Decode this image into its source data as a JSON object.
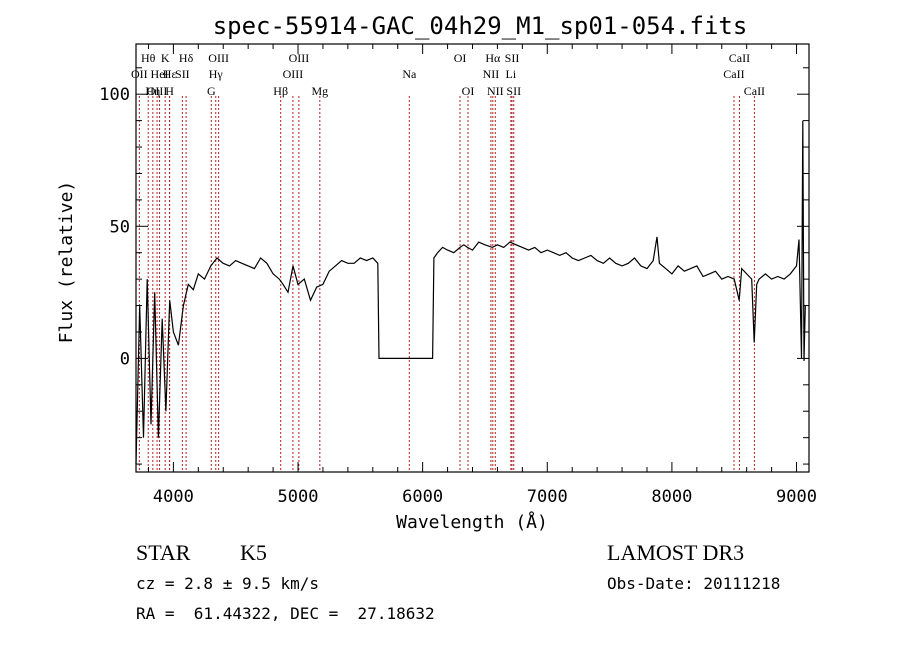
{
  "colors": {
    "background": "#ffffff",
    "ink": "#000000",
    "line_marker": "#b22222"
  },
  "chart_data": {
    "type": "line",
    "title": "spec-55914-GAC_04h29_M1_sp01-054.fits",
    "xlabel": "Wavelength (Å)",
    "ylabel": "Flux (relative)",
    "xlim": [
      3700,
      9100
    ],
    "ylim": [
      -43,
      119
    ],
    "xticks": [
      4000,
      5000,
      6000,
      7000,
      8000,
      9000
    ],
    "yticks": [
      0,
      50,
      100
    ],
    "grid": false,
    "series": [
      {
        "name": "flux",
        "x": [
          3700,
          3730,
          3760,
          3790,
          3820,
          3850,
          3880,
          3910,
          3940,
          3970,
          4000,
          4040,
          4080,
          4120,
          4160,
          4200,
          4250,
          4300,
          4350,
          4400,
          4450,
          4500,
          4550,
          4600,
          4650,
          4700,
          4750,
          4800,
          4850,
          4880,
          4920,
          4960,
          5000,
          5050,
          5100,
          5150,
          5200,
          5250,
          5300,
          5350,
          5400,
          5450,
          5500,
          5550,
          5600,
          5640,
          5650,
          5700,
          5800,
          5900,
          6000,
          6080,
          6090,
          6120,
          6160,
          6200,
          6250,
          6300,
          6330,
          6360,
          6400,
          6450,
          6500,
          6560,
          6600,
          6650,
          6700,
          6750,
          6800,
          6850,
          6900,
          6950,
          7000,
          7050,
          7100,
          7150,
          7200,
          7250,
          7300,
          7350,
          7400,
          7450,
          7500,
          7550,
          7600,
          7650,
          7700,
          7750,
          7800,
          7850,
          7880,
          7900,
          7950,
          8000,
          8050,
          8100,
          8150,
          8200,
          8250,
          8300,
          8350,
          8400,
          8450,
          8500,
          8540,
          8560,
          8600,
          8640,
          8660,
          8680,
          8700,
          8750,
          8800,
          8850,
          8900,
          8950,
          9000,
          9020,
          9040,
          9050,
          9060,
          9070
        ],
        "y": [
          -40,
          20,
          -30,
          30,
          -25,
          25,
          -30,
          15,
          -20,
          22,
          10,
          5,
          20,
          28,
          26,
          32,
          30,
          35,
          38,
          36,
          35,
          37,
          36,
          35,
          34,
          38,
          36,
          32,
          30,
          28,
          25,
          35,
          28,
          30,
          22,
          27,
          28,
          33,
          35,
          37,
          36,
          36,
          38,
          37,
          38,
          36,
          0,
          0,
          0,
          0,
          0,
          0,
          38,
          40,
          42,
          41,
          40,
          42,
          43,
          42,
          41,
          44,
          43,
          42,
          43,
          42,
          44,
          43,
          42,
          41,
          42,
          40,
          41,
          40,
          39,
          40,
          38,
          37,
          38,
          39,
          37,
          36,
          38,
          36,
          35,
          36,
          38,
          35,
          34,
          37,
          46,
          36,
          34,
          32,
          35,
          33,
          34,
          35,
          31,
          32,
          33,
          30,
          31,
          30,
          22,
          34,
          32,
          30,
          6,
          28,
          30,
          32,
          30,
          31,
          30,
          32,
          35,
          45,
          0,
          90,
          -1,
          20
        ]
      }
    ],
    "lines": [
      {
        "label": "Hθ",
        "wave": 3798,
        "row": 1
      },
      {
        "label": "OII",
        "wave": 3727,
        "row": 2
      },
      {
        "label": "OIII",
        "wave": 3869,
        "row": 3
      },
      {
        "label": "K",
        "wave": 3934,
        "row": 1
      },
      {
        "label": "H",
        "wave": 3969,
        "row": 3
      },
      {
        "label": "Hε",
        "wave": 3970,
        "row": 2
      },
      {
        "label": "HeI",
        "wave": 3889,
        "row": 2
      },
      {
        "label": "Hη",
        "wave": 3835,
        "row": 3
      },
      {
        "label": "SII",
        "wave": 4072,
        "row": 2
      },
      {
        "label": "Hδ",
        "wave": 4102,
        "row": 1
      },
      {
        "label": "OIII",
        "wave": 4363,
        "row": 1
      },
      {
        "label": "Hγ",
        "wave": 4340,
        "row": 2
      },
      {
        "label": "G",
        "wave": 4304,
        "row": 3
      },
      {
        "label": "Hβ",
        "wave": 4861,
        "row": 3
      },
      {
        "label": "OIII",
        "wave": 5007,
        "row": 1
      },
      {
        "label": "OIII",
        "wave": 4959,
        "row": 2
      },
      {
        "label": "Mg",
        "wave": 5175,
        "row": 3
      },
      {
        "label": "Na",
        "wave": 5893,
        "row": 2
      },
      {
        "label": "OI",
        "wave": 6300,
        "row": 1
      },
      {
        "label": "OI",
        "wave": 6364,
        "row": 3
      },
      {
        "label": "Hα",
        "wave": 6563,
        "row": 1
      },
      {
        "label": "NII",
        "wave": 6548,
        "row": 2
      },
      {
        "label": "NII",
        "wave": 6583,
        "row": 3
      },
      {
        "label": "SII",
        "wave": 6717,
        "row": 1
      },
      {
        "label": "Li",
        "wave": 6708,
        "row": 2
      },
      {
        "label": "SII",
        "wave": 6731,
        "row": 3
      },
      {
        "label": "CaII",
        "wave": 8542,
        "row": 1
      },
      {
        "label": "CaII",
        "wave": 8498,
        "row": 2
      },
      {
        "label": "CaII",
        "wave": 8662,
        "row": 3
      }
    ]
  },
  "info": {
    "class": "STAR",
    "subclass": "K5",
    "survey": "LAMOST DR3",
    "cz": "cz = 2.8 ± 9.5 km/s",
    "obs_date": "Obs-Date: 20111218",
    "coords": "RA =  61.44322, DEC =  27.18632"
  }
}
